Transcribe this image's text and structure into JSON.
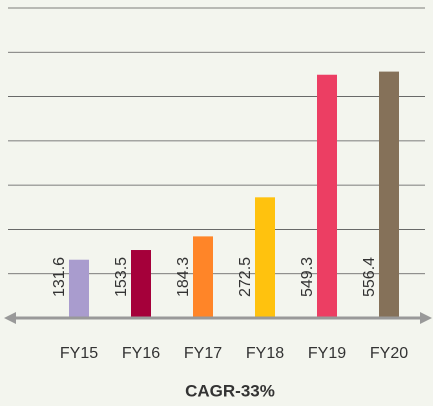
{
  "chart_data": {
    "type": "bar",
    "title": "CAGR-33%",
    "categories": [
      "FY15",
      "FY16",
      "FY17",
      "FY18",
      "FY19",
      "FY20"
    ],
    "values": [
      131.6,
      153.5,
      184.3,
      272.5,
      549.3,
      556.4
    ],
    "colors": [
      "#a99cce",
      "#a5003a",
      "#ff8528",
      "#ffc20e",
      "#ec3e63",
      "#857159"
    ],
    "ylim": [
      0,
      700
    ],
    "yticks": [
      0,
      100,
      200,
      300,
      400,
      500,
      600,
      700
    ],
    "grid": true
  }
}
